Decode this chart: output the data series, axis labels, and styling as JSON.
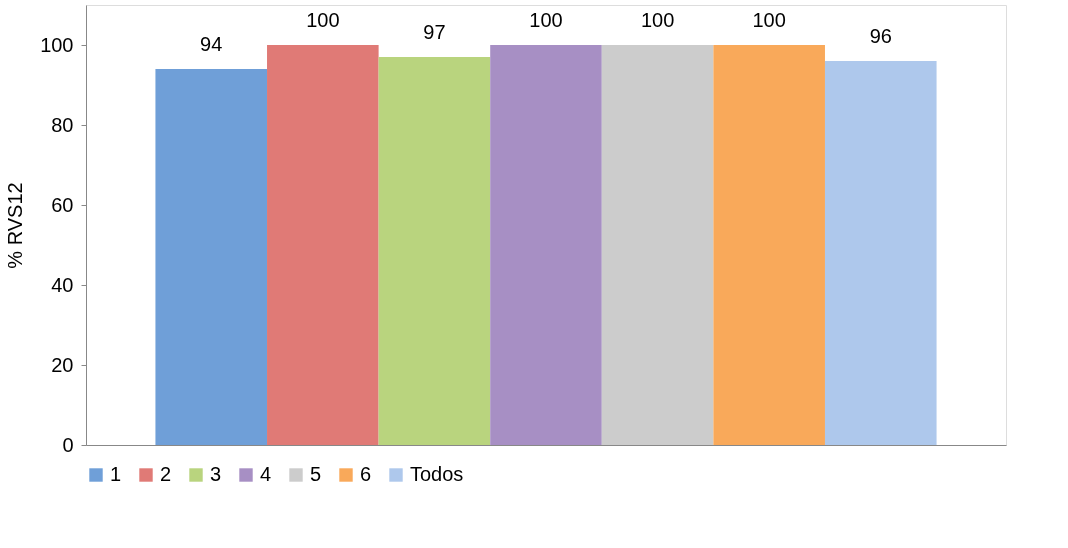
{
  "chart_data": {
    "type": "bar",
    "ylabel": "% RVS12",
    "categories": [
      null
    ],
    "series": [
      {
        "name": "1",
        "color": "#6f9fd8",
        "values": [
          94
        ]
      },
      {
        "name": "2",
        "color": "#e07a76",
        "values": [
          100
        ]
      },
      {
        "name": "3",
        "color": "#b9d47e",
        "values": [
          97
        ]
      },
      {
        "name": "4",
        "color": "#a78fc4",
        "values": [
          100
        ]
      },
      {
        "name": "5",
        "color": "#cccccc",
        "values": [
          100
        ]
      },
      {
        "name": "6",
        "color": "#f9a95a",
        "values": [
          100
        ]
      },
      {
        "name": "Todos",
        "color": "#aec8ec",
        "values": [
          96
        ]
      }
    ],
    "ylim": [
      0,
      110
    ],
    "yticks": [
      0,
      20,
      40,
      60,
      80,
      100
    ],
    "data_labels": true,
    "legend": "bottom",
    "grid": false
  }
}
